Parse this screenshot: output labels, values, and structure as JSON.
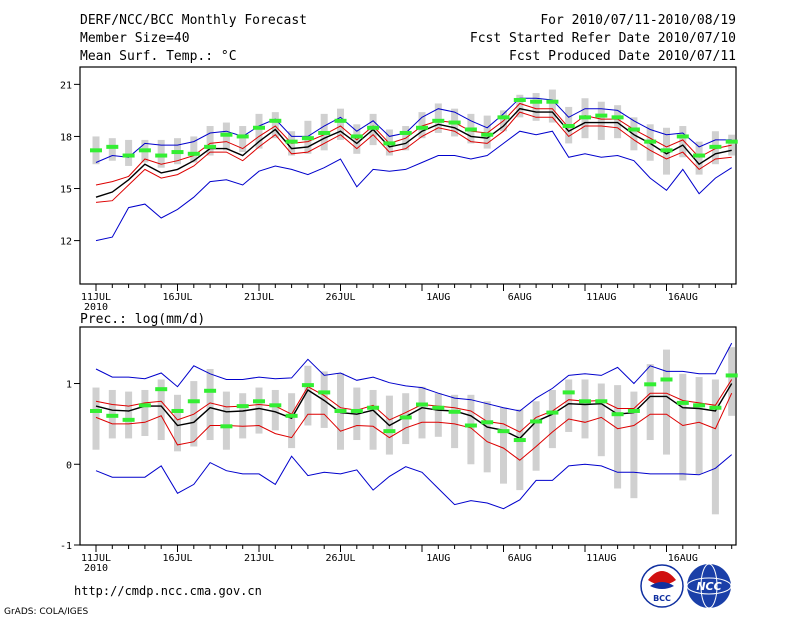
{
  "header": {
    "title": "DERF/NCC/BCC Monthly Forecast",
    "member_size": "Member Size=40",
    "variable": "Mean Surf. Temp.: °C",
    "period": "For 2010/07/11-2010/08/19",
    "start_date": "Fcst Started Refer Date 2010/07/10",
    "produced_date": "Fcst Produced Date 2010/07/11"
  },
  "footer": {
    "url": "http://cmdp.ncc.cma.gov.cn",
    "grads": "GrADS: COLA/IGES",
    "logo_bcc": "BCC",
    "logo_ncc": "NCC"
  },
  "colors": {
    "box": "#d0d0d0",
    "median": "#33ee33",
    "mean": "#000000",
    "sd": "#dd0000",
    "extreme": "#0000cc"
  },
  "chart_data": [
    {
      "type": "line",
      "title": "Mean Surf. Temp.: °C",
      "xlabel": "",
      "ylabel": "",
      "x_ticks": [
        "11JUL",
        "16JUL",
        "21JUL",
        "26JUL",
        "1AUG",
        "6AUG",
        "11AUG",
        "16AUG"
      ],
      "x_tick_year": "2010",
      "ylim": [
        9.5,
        22
      ],
      "y_ticks": [
        12,
        15,
        18,
        21
      ],
      "series": [
        {
          "name": "max",
          "values": [
            16.5,
            16.9,
            16.8,
            17.6,
            17.5,
            17.5,
            17.7,
            18.2,
            18.3,
            18.0,
            18.6,
            19.0,
            18.0,
            18.0,
            18.6,
            19.1,
            18.3,
            18.9,
            18.0,
            18.2,
            19.1,
            19.6,
            19.4,
            18.9,
            18.5,
            19.3,
            20.2,
            20.2,
            20.1,
            19.1,
            19.6,
            19.6,
            19.5,
            18.9,
            18.4,
            18.1,
            18.2,
            17.4,
            17.8,
            17.8
          ]
        },
        {
          "name": "mean_plus_sd",
          "values": [
            15.2,
            15.4,
            15.7,
            16.7,
            16.4,
            16.6,
            16.9,
            17.6,
            17.7,
            17.3,
            18.0,
            18.6,
            17.6,
            17.7,
            18.1,
            18.6,
            17.8,
            18.6,
            17.6,
            17.9,
            18.6,
            18.9,
            18.8,
            18.3,
            18.2,
            18.9,
            19.9,
            19.6,
            19.6,
            18.5,
            19.2,
            19.0,
            19.0,
            18.4,
            17.9,
            17.4,
            17.8,
            16.8,
            17.3,
            17.5
          ]
        },
        {
          "name": "mean",
          "values": [
            14.5,
            14.8,
            15.5,
            16.4,
            15.9,
            16.1,
            16.6,
            17.3,
            17.3,
            16.9,
            17.7,
            18.4,
            17.3,
            17.4,
            17.9,
            18.3,
            17.6,
            18.4,
            17.4,
            17.6,
            18.3,
            18.7,
            18.5,
            18.0,
            17.9,
            18.6,
            19.6,
            19.4,
            19.4,
            18.3,
            18.8,
            18.8,
            18.8,
            18.1,
            17.6,
            17.0,
            17.5,
            16.4,
            17.0,
            17.2
          ]
        },
        {
          "name": "mean_minus_sd",
          "values": [
            14.2,
            14.3,
            15.2,
            16.1,
            15.6,
            15.8,
            16.3,
            17.1,
            17.1,
            16.6,
            17.4,
            18.1,
            17.0,
            17.1,
            17.6,
            18.1,
            17.3,
            18.1,
            17.1,
            17.3,
            18.0,
            18.5,
            18.3,
            17.7,
            17.6,
            18.3,
            19.4,
            19.1,
            19.1,
            18.0,
            18.6,
            18.6,
            18.5,
            17.8,
            17.2,
            16.7,
            17.1,
            16.1,
            16.7,
            16.8
          ]
        },
        {
          "name": "min",
          "values": [
            12.0,
            12.2,
            13.9,
            14.1,
            13.3,
            13.8,
            14.5,
            15.4,
            15.5,
            15.2,
            16.0,
            16.3,
            16.1,
            15.8,
            16.2,
            16.7,
            15.1,
            16.1,
            16.0,
            16.1,
            16.5,
            16.9,
            16.9,
            16.7,
            16.9,
            17.6,
            18.3,
            18.1,
            18.3,
            16.8,
            17.0,
            16.8,
            16.9,
            16.6,
            15.6,
            14.9,
            16.1,
            14.7,
            15.6,
            16.2
          ]
        },
        {
          "name": "median",
          "values": [
            17.2,
            17.4,
            16.9,
            17.2,
            16.9,
            17.1,
            17.0,
            17.4,
            18.1,
            18.0,
            18.5,
            18.9,
            17.7,
            17.9,
            18.2,
            18.9,
            18.0,
            18.5,
            17.6,
            18.2,
            18.5,
            18.9,
            18.8,
            18.4,
            18.1,
            19.1,
            20.1,
            20.0,
            20.0,
            18.6,
            19.1,
            19.2,
            19.1,
            18.4,
            17.7,
            17.2,
            18.0,
            16.9,
            17.4,
            17.7
          ]
        },
        {
          "name": "box_high",
          "values": [
            18.0,
            17.9,
            17.8,
            17.8,
            17.8,
            17.9,
            18.0,
            18.6,
            18.8,
            18.6,
            19.3,
            19.4,
            18.3,
            18.9,
            19.3,
            19.6,
            18.7,
            19.3,
            18.4,
            18.6,
            19.4,
            19.9,
            19.6,
            19.3,
            19.2,
            19.5,
            20.4,
            20.5,
            20.7,
            19.7,
            20.2,
            20.0,
            19.8,
            19.1,
            18.7,
            18.5,
            18.6,
            17.7,
            18.3,
            18.1
          ]
        },
        {
          "name": "box_low",
          "values": [
            16.4,
            16.6,
            16.3,
            16.5,
            16.2,
            16.4,
            16.5,
            16.9,
            17.2,
            17.1,
            17.3,
            17.9,
            16.9,
            17.0,
            17.2,
            17.8,
            17.0,
            17.5,
            16.9,
            17.2,
            17.9,
            18.2,
            18.0,
            17.6,
            17.3,
            18.3,
            19.1,
            18.9,
            18.8,
            17.6,
            17.9,
            17.8,
            17.9,
            17.2,
            16.6,
            15.8,
            16.8,
            15.8,
            16.4,
            16.9
          ]
        }
      ]
    },
    {
      "type": "line",
      "title": "Prec.: log(mm/d)",
      "xlabel": "",
      "ylabel": "",
      "x_ticks": [
        "11JUL",
        "16JUL",
        "21JUL",
        "26JUL",
        "1AUG",
        "6AUG",
        "11AUG",
        "16AUG"
      ],
      "x_tick_year": "2010",
      "ylim": [
        -1,
        1.7
      ],
      "y_ticks": [
        -1,
        0,
        1
      ],
      "series": [
        {
          "name": "max",
          "values": [
            1.18,
            1.08,
            1.08,
            1.06,
            1.13,
            0.96,
            1.22,
            1.12,
            1.05,
            1.05,
            1.08,
            1.06,
            1.07,
            1.3,
            1.1,
            1.13,
            1.04,
            1.08,
            1.01,
            0.97,
            0.95,
            0.88,
            0.82,
            0.8,
            0.75,
            0.7,
            0.66,
            0.82,
            0.94,
            1.1,
            1.12,
            1.1,
            1.2,
            1.0,
            1.22,
            1.15,
            1.15,
            1.12,
            1.12,
            1.5
          ]
        },
        {
          "name": "mean_plus_sd",
          "values": [
            0.78,
            0.74,
            0.72,
            0.76,
            0.78,
            0.55,
            0.62,
            0.76,
            0.71,
            0.72,
            0.74,
            0.72,
            0.62,
            0.96,
            0.85,
            0.7,
            0.67,
            0.73,
            0.55,
            0.64,
            0.74,
            0.72,
            0.7,
            0.66,
            0.53,
            0.5,
            0.4,
            0.58,
            0.66,
            0.8,
            0.78,
            0.79,
            0.69,
            0.69,
            0.88,
            0.88,
            0.79,
            0.76,
            0.73,
            1.05
          ]
        },
        {
          "name": "mean",
          "values": [
            0.72,
            0.67,
            0.66,
            0.72,
            0.72,
            0.48,
            0.52,
            0.7,
            0.65,
            0.66,
            0.69,
            0.65,
            0.57,
            0.92,
            0.79,
            0.64,
            0.62,
            0.67,
            0.48,
            0.59,
            0.7,
            0.67,
            0.66,
            0.6,
            0.46,
            0.42,
            0.32,
            0.53,
            0.62,
            0.75,
            0.74,
            0.75,
            0.62,
            0.64,
            0.84,
            0.84,
            0.7,
            0.69,
            0.66,
            1.0
          ]
        },
        {
          "name": "mean_minus_sd",
          "values": [
            0.58,
            0.5,
            0.5,
            0.52,
            0.6,
            0.24,
            0.28,
            0.48,
            0.48,
            0.47,
            0.48,
            0.38,
            0.33,
            0.62,
            0.62,
            0.41,
            0.48,
            0.47,
            0.33,
            0.45,
            0.52,
            0.52,
            0.5,
            0.45,
            0.28,
            0.2,
            0.05,
            0.22,
            0.4,
            0.56,
            0.52,
            0.58,
            0.44,
            0.48,
            0.62,
            0.62,
            0.48,
            0.52,
            0.44,
            0.88
          ]
        },
        {
          "name": "min",
          "values": [
            -0.08,
            -0.16,
            -0.16,
            -0.16,
            -0.02,
            -0.36,
            -0.25,
            0.02,
            -0.08,
            -0.12,
            -0.12,
            -0.25,
            0.1,
            -0.14,
            -0.1,
            -0.12,
            -0.07,
            -0.32,
            -0.15,
            -0.03,
            -0.1,
            -0.3,
            -0.5,
            -0.45,
            -0.48,
            -0.55,
            -0.44,
            -0.2,
            -0.2,
            -0.02,
            0.0,
            -0.02,
            -0.1,
            -0.1,
            -0.12,
            -0.12,
            -0.12,
            -0.13,
            -0.05,
            0.12
          ]
        },
        {
          "name": "median",
          "values": [
            0.66,
            0.6,
            0.55,
            0.73,
            0.93,
            0.66,
            0.78,
            0.91,
            0.47,
            0.72,
            0.78,
            0.73,
            0.6,
            0.98,
            0.89,
            0.66,
            0.66,
            0.7,
            0.41,
            0.58,
            0.74,
            0.7,
            0.65,
            0.48,
            0.52,
            0.41,
            0.3,
            0.53,
            0.64,
            0.89,
            0.78,
            0.78,
            0.62,
            0.66,
            0.99,
            1.05,
            0.76,
            0.73,
            0.7,
            1.1
          ]
        },
        {
          "name": "box_high",
          "values": [
            0.95,
            0.92,
            0.9,
            0.92,
            1.05,
            0.86,
            1.03,
            1.18,
            0.9,
            0.88,
            0.95,
            0.92,
            0.88,
            1.22,
            1.15,
            1.13,
            0.95,
            0.92,
            0.85,
            0.88,
            0.96,
            0.88,
            0.86,
            0.86,
            0.78,
            0.7,
            0.68,
            0.78,
            0.92,
            1.05,
            1.05,
            1.0,
            0.98,
            0.9,
            1.24,
            1.42,
            1.12,
            1.08,
            1.05,
            1.45
          ]
        },
        {
          "name": "box_low",
          "values": [
            0.18,
            0.32,
            0.32,
            0.35,
            0.3,
            0.16,
            0.22,
            0.3,
            0.18,
            0.32,
            0.38,
            0.42,
            0.2,
            0.48,
            0.45,
            0.18,
            0.3,
            0.18,
            0.12,
            0.25,
            0.32,
            0.34,
            0.2,
            0.0,
            -0.1,
            -0.24,
            -0.32,
            -0.08,
            0.2,
            0.4,
            0.32,
            0.1,
            -0.3,
            -0.42,
            0.3,
            0.12,
            -0.2,
            -0.12,
            -0.62,
            0.6
          ]
        }
      ]
    }
  ]
}
